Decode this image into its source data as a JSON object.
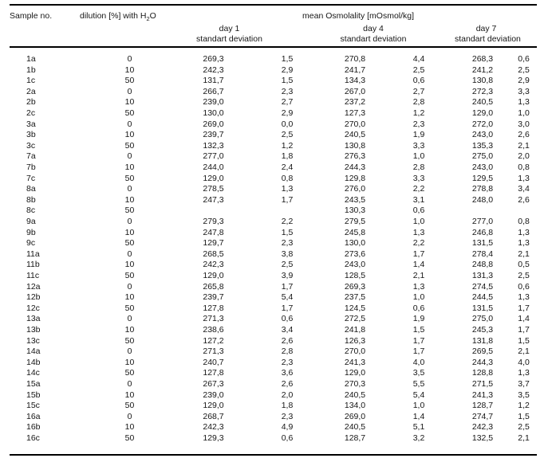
{
  "table": {
    "header": {
      "sample_no": "Sample no.",
      "dilution_prefix": "dilution [%] with H",
      "dilution_sub": "2",
      "dilution_suffix": "O",
      "osmolality": "mean Osmolality [mOsmol/kg]",
      "day_groups": [
        {
          "day": "day 1",
          "sub": "standart deviation"
        },
        {
          "day": "day 4",
          "sub": "standart deviation"
        },
        {
          "day": "day 7",
          "sub": "standart deviation"
        }
      ]
    },
    "rows": [
      {
        "sample": "1a",
        "dilution": "0",
        "day1": "269,3",
        "day1_sd": "1,5",
        "day4": "270,8",
        "day4_sd": "4,4",
        "day7": "268,3",
        "day7_sd": "0,6"
      },
      {
        "sample": "1b",
        "dilution": "10",
        "day1": "242,3",
        "day1_sd": "2,9",
        "day4": "241,7",
        "day4_sd": "2,5",
        "day7": "241,2",
        "day7_sd": "2,5"
      },
      {
        "sample": "1c",
        "dilution": "50",
        "day1": "131,7",
        "day1_sd": "1,5",
        "day4": "134,3",
        "day4_sd": "0,6",
        "day7": "130,8",
        "day7_sd": "2,9"
      },
      {
        "sample": "2a",
        "dilution": "0",
        "day1": "266,7",
        "day1_sd": "2,3",
        "day4": "267,0",
        "day4_sd": "2,7",
        "day7": "272,3",
        "day7_sd": "3,3"
      },
      {
        "sample": "2b",
        "dilution": "10",
        "day1": "239,0",
        "day1_sd": "2,7",
        "day4": "237,2",
        "day4_sd": "2,8",
        "day7": "240,5",
        "day7_sd": "1,3"
      },
      {
        "sample": "2c",
        "dilution": "50",
        "day1": "130,0",
        "day1_sd": "2,9",
        "day4": "127,3",
        "day4_sd": "1,2",
        "day7": "129,0",
        "day7_sd": "1,0"
      },
      {
        "sample": "3a",
        "dilution": "0",
        "day1": "269,0",
        "day1_sd": "0,0",
        "day4": "270,0",
        "day4_sd": "2,3",
        "day7": "272,0",
        "day7_sd": "3,0"
      },
      {
        "sample": "3b",
        "dilution": "10",
        "day1": "239,7",
        "day1_sd": "2,5",
        "day4": "240,5",
        "day4_sd": "1,9",
        "day7": "243,0",
        "day7_sd": "2,6"
      },
      {
        "sample": "3c",
        "dilution": "50",
        "day1": "132,3",
        "day1_sd": "1,2",
        "day4": "130,8",
        "day4_sd": "3,3",
        "day7": "135,3",
        "day7_sd": "2,1"
      },
      {
        "sample": "7a",
        "dilution": "0",
        "day1": "277,0",
        "day1_sd": "1,8",
        "day4": "276,3",
        "day4_sd": "1,0",
        "day7": "275,0",
        "day7_sd": "2,0"
      },
      {
        "sample": "7b",
        "dilution": "10",
        "day1": "244,0",
        "day1_sd": "2,4",
        "day4": "244,3",
        "day4_sd": "2,8",
        "day7": "243,0",
        "day7_sd": "0,8"
      },
      {
        "sample": "7c",
        "dilution": "50",
        "day1": "129,0",
        "day1_sd": "0,8",
        "day4": "129,8",
        "day4_sd": "3,3",
        "day7": "129,5",
        "day7_sd": "1,3"
      },
      {
        "sample": "8a",
        "dilution": "0",
        "day1": "278,5",
        "day1_sd": "1,3",
        "day4": "276,0",
        "day4_sd": "2,2",
        "day7": "278,8",
        "day7_sd": "3,4"
      },
      {
        "sample": "8b",
        "dilution": "10",
        "day1": "247,3",
        "day1_sd": "1,7",
        "day4": "243,5",
        "day4_sd": "3,1",
        "day7": "248,0",
        "day7_sd": "2,6"
      },
      {
        "sample": "8c",
        "dilution": "50",
        "day1": "",
        "day1_sd": "",
        "day4": "130,3",
        "day4_sd": "0,6",
        "day7": "",
        "day7_sd": ""
      },
      {
        "sample": "9a",
        "dilution": "0",
        "day1": "279,3",
        "day1_sd": "2,2",
        "day4": "279,5",
        "day4_sd": "1,0",
        "day7": "277,0",
        "day7_sd": "0,8"
      },
      {
        "sample": "9b",
        "dilution": "10",
        "day1": "247,8",
        "day1_sd": "1,5",
        "day4": "245,8",
        "day4_sd": "1,3",
        "day7": "246,8",
        "day7_sd": "1,3"
      },
      {
        "sample": "9c",
        "dilution": "50",
        "day1": "129,7",
        "day1_sd": "2,3",
        "day4": "130,0",
        "day4_sd": "2,2",
        "day7": "131,5",
        "day7_sd": "1,3"
      },
      {
        "sample": "11a",
        "dilution": "0",
        "day1": "268,5",
        "day1_sd": "3,8",
        "day4": "273,6",
        "day4_sd": "1,7",
        "day7": "278,4",
        "day7_sd": "2,1"
      },
      {
        "sample": "11b",
        "dilution": "10",
        "day1": "242,3",
        "day1_sd": "2,5",
        "day4": "243,0",
        "day4_sd": "1,4",
        "day7": "248,8",
        "day7_sd": "0,5"
      },
      {
        "sample": "11c",
        "dilution": "50",
        "day1": "129,0",
        "day1_sd": "3,9",
        "day4": "128,5",
        "day4_sd": "2,1",
        "day7": "131,3",
        "day7_sd": "2,5"
      },
      {
        "sample": "12a",
        "dilution": "0",
        "day1": "265,8",
        "day1_sd": "1,7",
        "day4": "269,3",
        "day4_sd": "1,3",
        "day7": "274,5",
        "day7_sd": "0,6"
      },
      {
        "sample": "12b",
        "dilution": "10",
        "day1": "239,7",
        "day1_sd": "5,4",
        "day4": "237,5",
        "day4_sd": "1,0",
        "day7": "244,5",
        "day7_sd": "1,3"
      },
      {
        "sample": "12c",
        "dilution": "50",
        "day1": "127,8",
        "day1_sd": "1,7",
        "day4": "124,5",
        "day4_sd": "0,6",
        "day7": "131,5",
        "day7_sd": "1,7"
      },
      {
        "sample": "13a",
        "dilution": "0",
        "day1": "271,3",
        "day1_sd": "0,6",
        "day4": "272,5",
        "day4_sd": "1,9",
        "day7": "275,0",
        "day7_sd": "1,4"
      },
      {
        "sample": "13b",
        "dilution": "10",
        "day1": "238,6",
        "day1_sd": "3,4",
        "day4": "241,8",
        "day4_sd": "1,5",
        "day7": "245,3",
        "day7_sd": "1,7"
      },
      {
        "sample": "13c",
        "dilution": "50",
        "day1": "127,2",
        "day1_sd": "2,6",
        "day4": "126,3",
        "day4_sd": "1,7",
        "day7": "131,8",
        "day7_sd": "1,5"
      },
      {
        "sample": "14a",
        "dilution": "0",
        "day1": "271,3",
        "day1_sd": "2,8",
        "day4": "270,0",
        "day4_sd": "1,7",
        "day7": "269,5",
        "day7_sd": "2,1"
      },
      {
        "sample": "14b",
        "dilution": "10",
        "day1": "240,7",
        "day1_sd": "2,3",
        "day4": "241,3",
        "day4_sd": "4,0",
        "day7": "244,3",
        "day7_sd": "4,0"
      },
      {
        "sample": "14c",
        "dilution": "50",
        "day1": "127,8",
        "day1_sd": "3,6",
        "day4": "129,0",
        "day4_sd": "3,5",
        "day7": "128,8",
        "day7_sd": "1,3"
      },
      {
        "sample": "15a",
        "dilution": "0",
        "day1": "267,3",
        "day1_sd": "2,6",
        "day4": "270,3",
        "day4_sd": "5,5",
        "day7": "271,5",
        "day7_sd": "3,7"
      },
      {
        "sample": "15b",
        "dilution": "10",
        "day1": "239,0",
        "day1_sd": "2,0",
        "day4": "240,5",
        "day4_sd": "5,4",
        "day7": "241,3",
        "day7_sd": "3,5"
      },
      {
        "sample": "15c",
        "dilution": "50",
        "day1": "129,0",
        "day1_sd": "1,8",
        "day4": "134,0",
        "day4_sd": "1,0",
        "day7": "128,7",
        "day7_sd": "1,2"
      },
      {
        "sample": "16a",
        "dilution": "0",
        "day1": "268,7",
        "day1_sd": "2,3",
        "day4": "269,0",
        "day4_sd": "1,4",
        "day7": "274,7",
        "day7_sd": "1,5"
      },
      {
        "sample": "16b",
        "dilution": "10",
        "day1": "242,3",
        "day1_sd": "4,9",
        "day4": "240,5",
        "day4_sd": "5,1",
        "day7": "242,3",
        "day7_sd": "2,5"
      },
      {
        "sample": "16c",
        "dilution": "50",
        "day1": "129,3",
        "day1_sd": "0,6",
        "day4": "128,7",
        "day4_sd": "3,2",
        "day7": "132,5",
        "day7_sd": "2,1"
      }
    ]
  }
}
